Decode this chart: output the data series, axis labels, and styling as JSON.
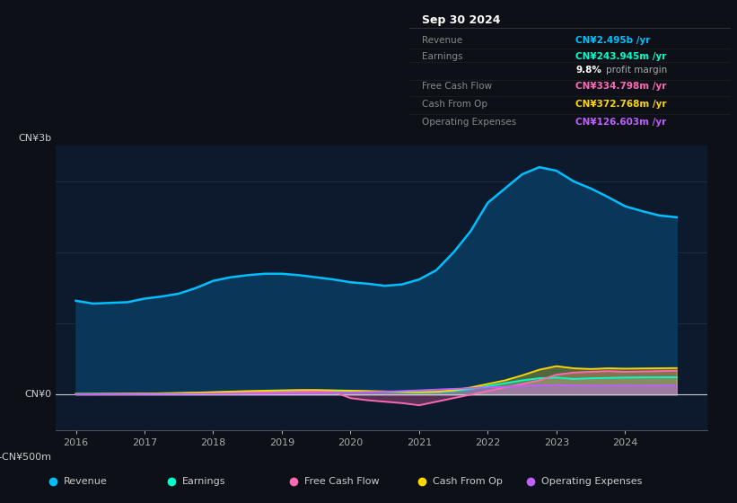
{
  "bg_color": "#0d1117",
  "plot_bg_color": "#0d1a2d",
  "title_box": {
    "date": "Sep 30 2024",
    "rows": [
      {
        "label": "Revenue",
        "value": "CN¥2.495b /yr",
        "value_color": "#00bfff"
      },
      {
        "label": "Earnings",
        "value": "CN¥243.945m /yr",
        "value_color": "#00ffcc"
      },
      {
        "label": "",
        "value": "9.8% profit margin",
        "value_color": "#ffffff"
      },
      {
        "label": "Free Cash Flow",
        "value": "CN¥334.798m /yr",
        "value_color": "#ff69b4"
      },
      {
        "label": "Cash From Op",
        "value": "CN¥372.768m /yr",
        "value_color": "#ffd700"
      },
      {
        "label": "Operating Expenses",
        "value": "CN¥126.603m /yr",
        "value_color": "#bf5fff"
      }
    ]
  },
  "ylabel_top": "CN¥3b",
  "ylabel_mid": "CN¥0",
  "ylabel_bot": "-CN¥500m",
  "ylim": [
    -500,
    3500
  ],
  "xticks": [
    2016,
    2017,
    2018,
    2019,
    2020,
    2021,
    2022,
    2023,
    2024
  ],
  "years": [
    2016.0,
    2016.25,
    2016.5,
    2016.75,
    2017.0,
    2017.25,
    2017.5,
    2017.75,
    2018.0,
    2018.25,
    2018.5,
    2018.75,
    2019.0,
    2019.25,
    2019.5,
    2019.75,
    2020.0,
    2020.25,
    2020.5,
    2020.75,
    2021.0,
    2021.25,
    2021.5,
    2021.75,
    2022.0,
    2022.25,
    2022.5,
    2022.75,
    2023.0,
    2023.25,
    2023.5,
    2023.75,
    2024.0,
    2024.25,
    2024.5,
    2024.75
  ],
  "revenue": [
    1320,
    1280,
    1290,
    1300,
    1350,
    1380,
    1420,
    1500,
    1600,
    1650,
    1680,
    1700,
    1700,
    1680,
    1650,
    1620,
    1580,
    1560,
    1530,
    1550,
    1620,
    1750,
    2000,
    2300,
    2700,
    2900,
    3100,
    3200,
    3150,
    3000,
    2900,
    2780,
    2650,
    2580,
    2520,
    2495
  ],
  "earnings": [
    10,
    10,
    12,
    12,
    15,
    18,
    20,
    25,
    30,
    35,
    40,
    45,
    50,
    55,
    55,
    52,
    50,
    45,
    40,
    35,
    30,
    35,
    50,
    80,
    120,
    160,
    200,
    230,
    240,
    220,
    230,
    235,
    240,
    242,
    244,
    244
  ],
  "free_cash_flow": [
    5,
    6,
    8,
    10,
    12,
    15,
    18,
    20,
    22,
    25,
    28,
    30,
    35,
    40,
    42,
    38,
    -50,
    -80,
    -100,
    -120,
    -150,
    -100,
    -50,
    0,
    50,
    100,
    150,
    200,
    280,
    310,
    320,
    330,
    320,
    325,
    330,
    335
  ],
  "cash_from_op": [
    8,
    9,
    10,
    12,
    15,
    18,
    22,
    28,
    35,
    42,
    50,
    55,
    60,
    65,
    65,
    60,
    55,
    50,
    45,
    40,
    35,
    40,
    60,
    100,
    150,
    200,
    270,
    350,
    400,
    370,
    360,
    370,
    365,
    368,
    370,
    373
  ],
  "op_expenses": [
    5,
    5,
    6,
    6,
    8,
    8,
    8,
    10,
    10,
    10,
    12,
    12,
    15,
    18,
    20,
    25,
    30,
    35,
    40,
    50,
    60,
    70,
    80,
    90,
    100,
    110,
    120,
    130,
    135,
    128,
    125,
    126,
    125,
    126,
    126,
    127
  ],
  "revenue_color": "#00bfff",
  "revenue_fill": "#0a3a5e",
  "earnings_color": "#00ffcc",
  "fcf_color": "#ff69b4",
  "cfop_color": "#ffd700",
  "opex_color": "#bf5fff",
  "legend_items": [
    {
      "label": "Revenue",
      "color": "#00bfff"
    },
    {
      "label": "Earnings",
      "color": "#00ffcc"
    },
    {
      "label": "Free Cash Flow",
      "color": "#ff69b4"
    },
    {
      "label": "Cash From Op",
      "color": "#ffd700"
    },
    {
      "label": "Operating Expenses",
      "color": "#bf5fff"
    }
  ]
}
